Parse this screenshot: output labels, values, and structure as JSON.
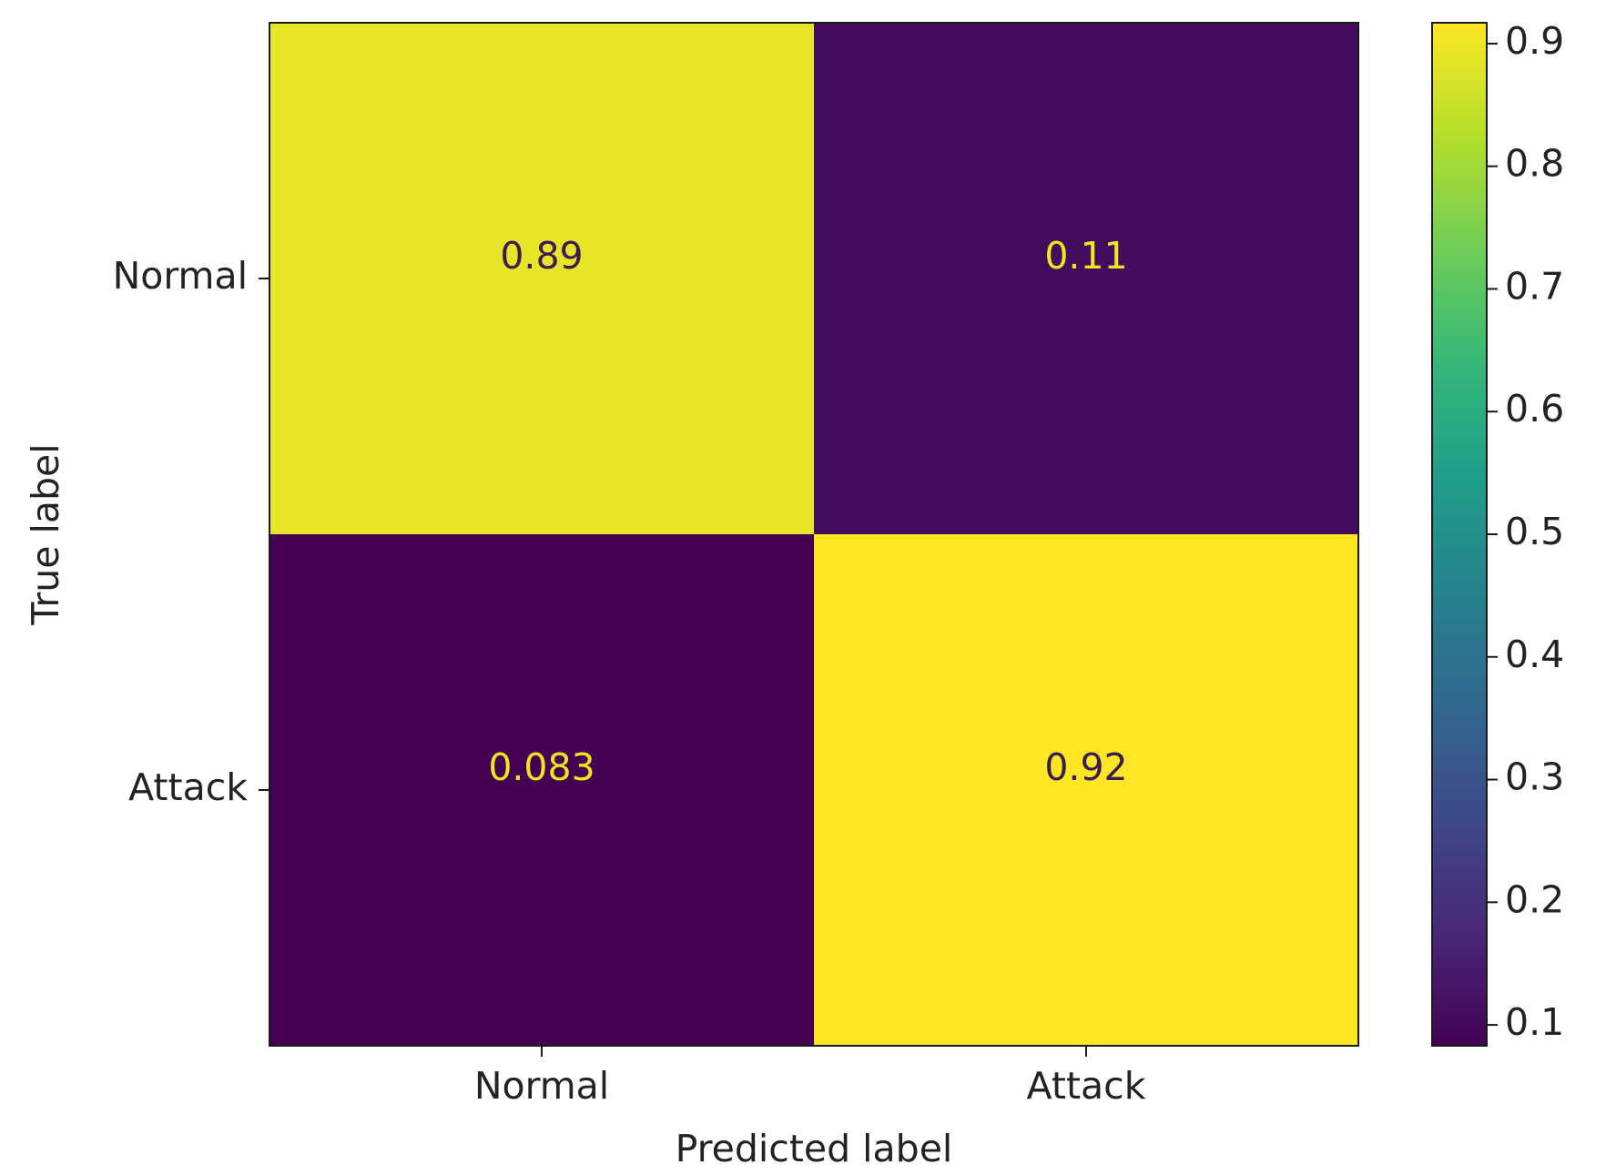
{
  "chart_data": {
    "type": "heatmap",
    "title": "",
    "xlabel": "Predicted label",
    "ylabel": "True label",
    "x_categories": [
      "Normal",
      "Attack"
    ],
    "y_categories": [
      "Normal",
      "Attack"
    ],
    "values": [
      [
        0.89,
        0.11
      ],
      [
        0.083,
        0.92
      ]
    ],
    "value_labels": [
      [
        "0.89",
        "0.11"
      ],
      [
        "0.083",
        "0.92"
      ]
    ],
    "colormap": "viridis",
    "colorbar": {
      "range": [
        0.083,
        0.917
      ],
      "ticks": [
        0.1,
        0.2,
        0.3,
        0.4,
        0.5,
        0.6,
        0.7,
        0.8,
        0.9
      ],
      "tick_labels": [
        "0.1",
        "0.2",
        "0.3",
        "0.4",
        "0.5",
        "0.6",
        "0.7",
        "0.8",
        "0.9"
      ]
    },
    "colors": {
      "viridis_stops": [
        "#440154",
        "#482878",
        "#3e4989",
        "#31688e",
        "#26828e",
        "#1f9e89",
        "#35b779",
        "#6ece58",
        "#b5de2b",
        "#fde725"
      ],
      "light_text": "#f1e51d",
      "dark_text": "#3b1c52",
      "frame": "#1a1a1a"
    }
  }
}
